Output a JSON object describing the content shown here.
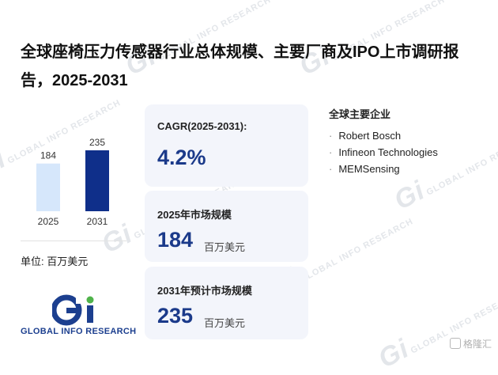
{
  "title": "全球座椅压力传感器行业总体规模、主要厂商及IPO上市调研报告，2025-2031",
  "chart_data": {
    "type": "bar",
    "categories": [
      "2025",
      "2031"
    ],
    "values": [
      184,
      235
    ],
    "ylim": [
      0,
      235
    ],
    "colors": [
      "#d6e7fb",
      "#0f2f8a"
    ],
    "grid": false
  },
  "unit_label": "单位: 百万美元",
  "cards": {
    "cagr": {
      "label": "CAGR(2025-2031):",
      "value": "4.2%"
    },
    "size_2025": {
      "label": "2025年市场规模",
      "value": "184",
      "unit": "百万美元"
    },
    "size_2031": {
      "label": "2031年预计市场规模",
      "value": "235",
      "unit": "百万美元"
    }
  },
  "companies": {
    "title": "全球主要企业",
    "items": [
      "Robert Bosch",
      "Infineon Technologies",
      "MEMSensing"
    ]
  },
  "logo": {
    "text": "GLOBAL INFO RESEARCH",
    "icon": "gi-logo-icon"
  },
  "watermark": {
    "text": "GLOBAL INFO RESEARCH"
  },
  "corner_mark": {
    "text": "格隆汇",
    "icon": "glh-logo-icon"
  },
  "accent_color": "#1b3a8a"
}
